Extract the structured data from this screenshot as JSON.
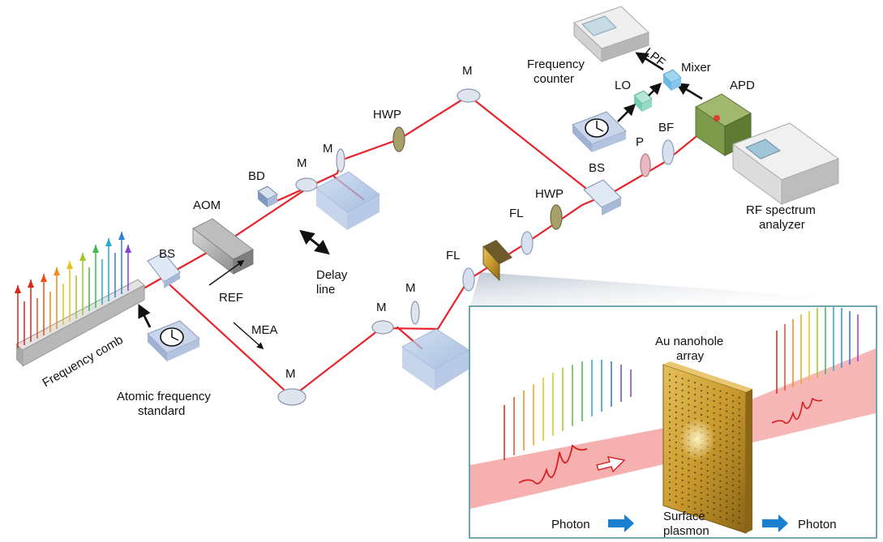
{
  "labels": {
    "mirror": "M",
    "hwp": "HWP",
    "bd": "BD",
    "aom": "AOM",
    "bs": "BS",
    "ref": "REF",
    "mea": "MEA",
    "delay_1": "Delay",
    "delay_2": "line",
    "fl": "FL",
    "p": "P",
    "bf": "BF",
    "apd": "APD",
    "lo": "LO",
    "mixer": "Mixer",
    "lpf": "LPF",
    "freq_counter_1": "Frequency",
    "freq_counter_2": "counter",
    "rf_1": "RF spectrum",
    "rf_2": "analyzer",
    "comb": "Frequency comb",
    "atomic_1": "Atomic frequency",
    "atomic_2": "standard"
  },
  "inset": {
    "title_1": "Au nanohole",
    "title_2": "array",
    "photon_in": "Photon",
    "surface_1": "Surface",
    "surface_2": "plasmon",
    "photon_out": "Photon"
  },
  "colors": {
    "beam": "#e8242a",
    "accent_arrow": "#1b7fd0",
    "inset_border": "#4b8fa0",
    "gold": "#c99a2e"
  }
}
